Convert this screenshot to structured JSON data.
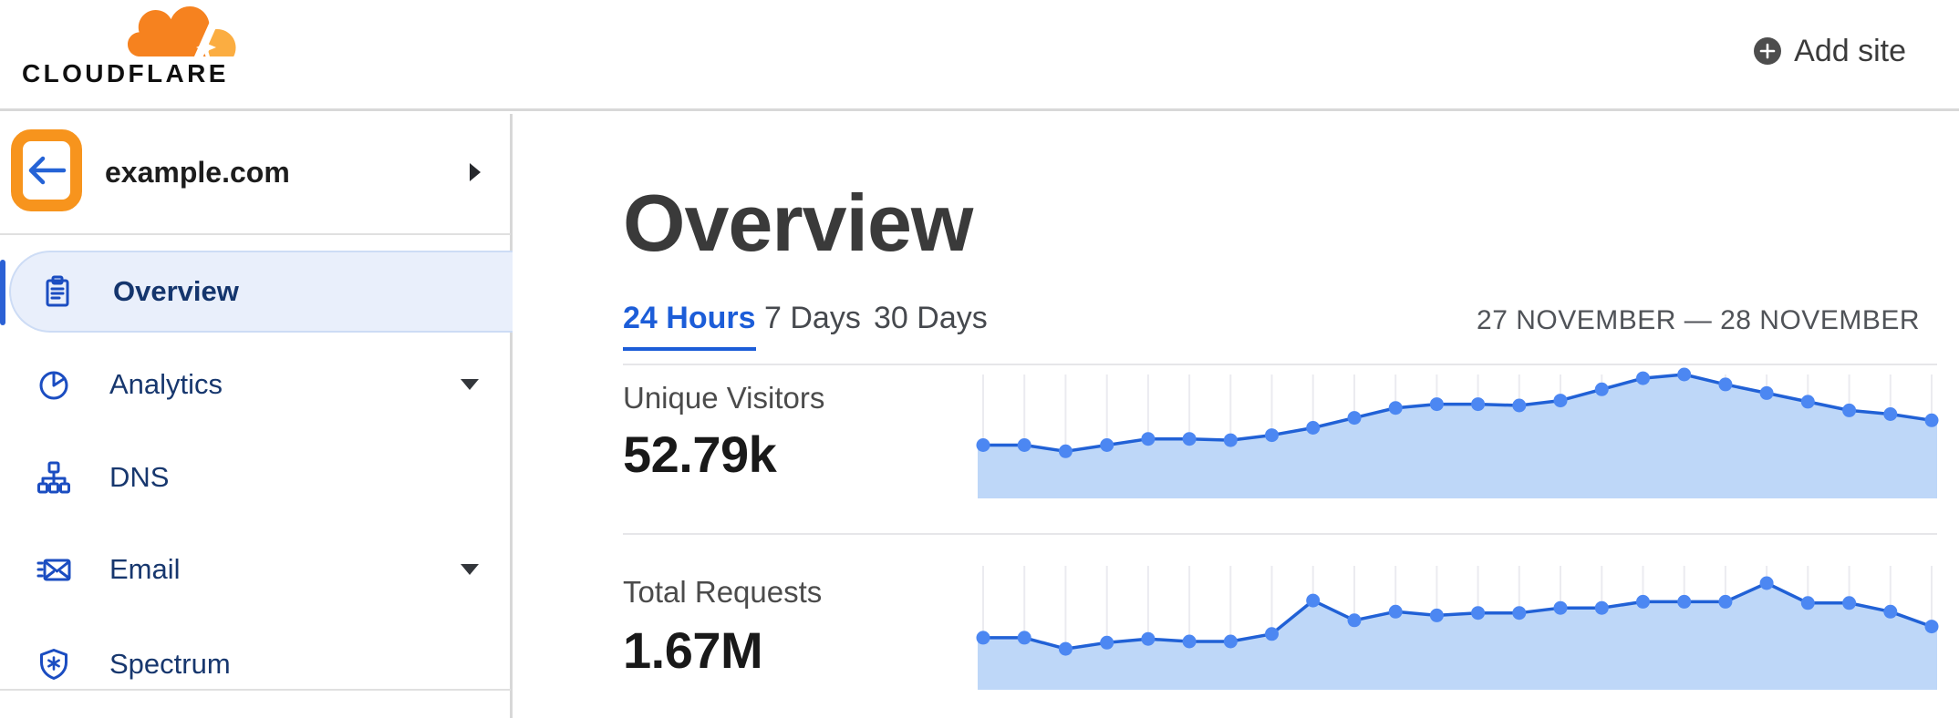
{
  "header": {
    "logo_text": "CLOUDFLARE",
    "add_site_label": "Add site"
  },
  "sidebar": {
    "site": {
      "domain": "example.com"
    },
    "items": [
      {
        "label": "Overview",
        "active": true,
        "has_submenu": false
      },
      {
        "label": "Analytics",
        "active": false,
        "has_submenu": true
      },
      {
        "label": "DNS",
        "active": false,
        "has_submenu": false
      },
      {
        "label": "Email",
        "active": false,
        "has_submenu": true
      },
      {
        "label": "Spectrum",
        "active": false,
        "has_submenu": false
      }
    ]
  },
  "main": {
    "title": "Overview",
    "tabs": [
      {
        "label": "24 Hours",
        "active": true
      },
      {
        "label": "7 Days",
        "active": false
      },
      {
        "label": "30 Days",
        "active": false
      }
    ],
    "date_range": "27 NOVEMBER — 28 NOVEMBER",
    "metrics": [
      {
        "label": "Unique Visitors",
        "value": "52.79k"
      },
      {
        "label": "Total Requests",
        "value": "1.67M"
      }
    ]
  },
  "colors": {
    "brand_orange": "#f6821f",
    "brand_orange_light": "#fbad41",
    "annotation_orange": "#f7941d",
    "nav_icon_blue": "#1b4dc1",
    "nav_text_navy": "#17376e",
    "active_pill_bg": "#e9effb",
    "tab_active_blue": "#1c5dd8",
    "chart_line": "#2161d6",
    "chart_dot": "#4c87f2",
    "chart_fill": "#bed7f8",
    "chart_gridline": "#ebebf0"
  },
  "chart_data": [
    {
      "type": "area",
      "title": "Unique Visitors — last 24 hours",
      "total_label": "52.79k",
      "x": "hourly samples, 27 November — 28 November",
      "values_relative": [
        0.43,
        0.43,
        0.38,
        0.43,
        0.48,
        0.48,
        0.47,
        0.51,
        0.57,
        0.65,
        0.73,
        0.76,
        0.76,
        0.75,
        0.79,
        0.88,
        0.97,
        1.0,
        0.92,
        0.85,
        0.78,
        0.71,
        0.68,
        0.63
      ],
      "grid": "vertical-light",
      "legend": "none"
    },
    {
      "type": "area",
      "title": "Total Requests — last 24 hours",
      "total_label": "1.67M",
      "x": "hourly samples, 27 November — 28 November",
      "values_relative": [
        0.42,
        0.42,
        0.33,
        0.38,
        0.41,
        0.39,
        0.39,
        0.45,
        0.72,
        0.56,
        0.63,
        0.6,
        0.62,
        0.62,
        0.66,
        0.66,
        0.71,
        0.71,
        0.71,
        0.86,
        0.7,
        0.7,
        0.63,
        0.51
      ],
      "grid": "vertical-light",
      "legend": "none"
    }
  ]
}
